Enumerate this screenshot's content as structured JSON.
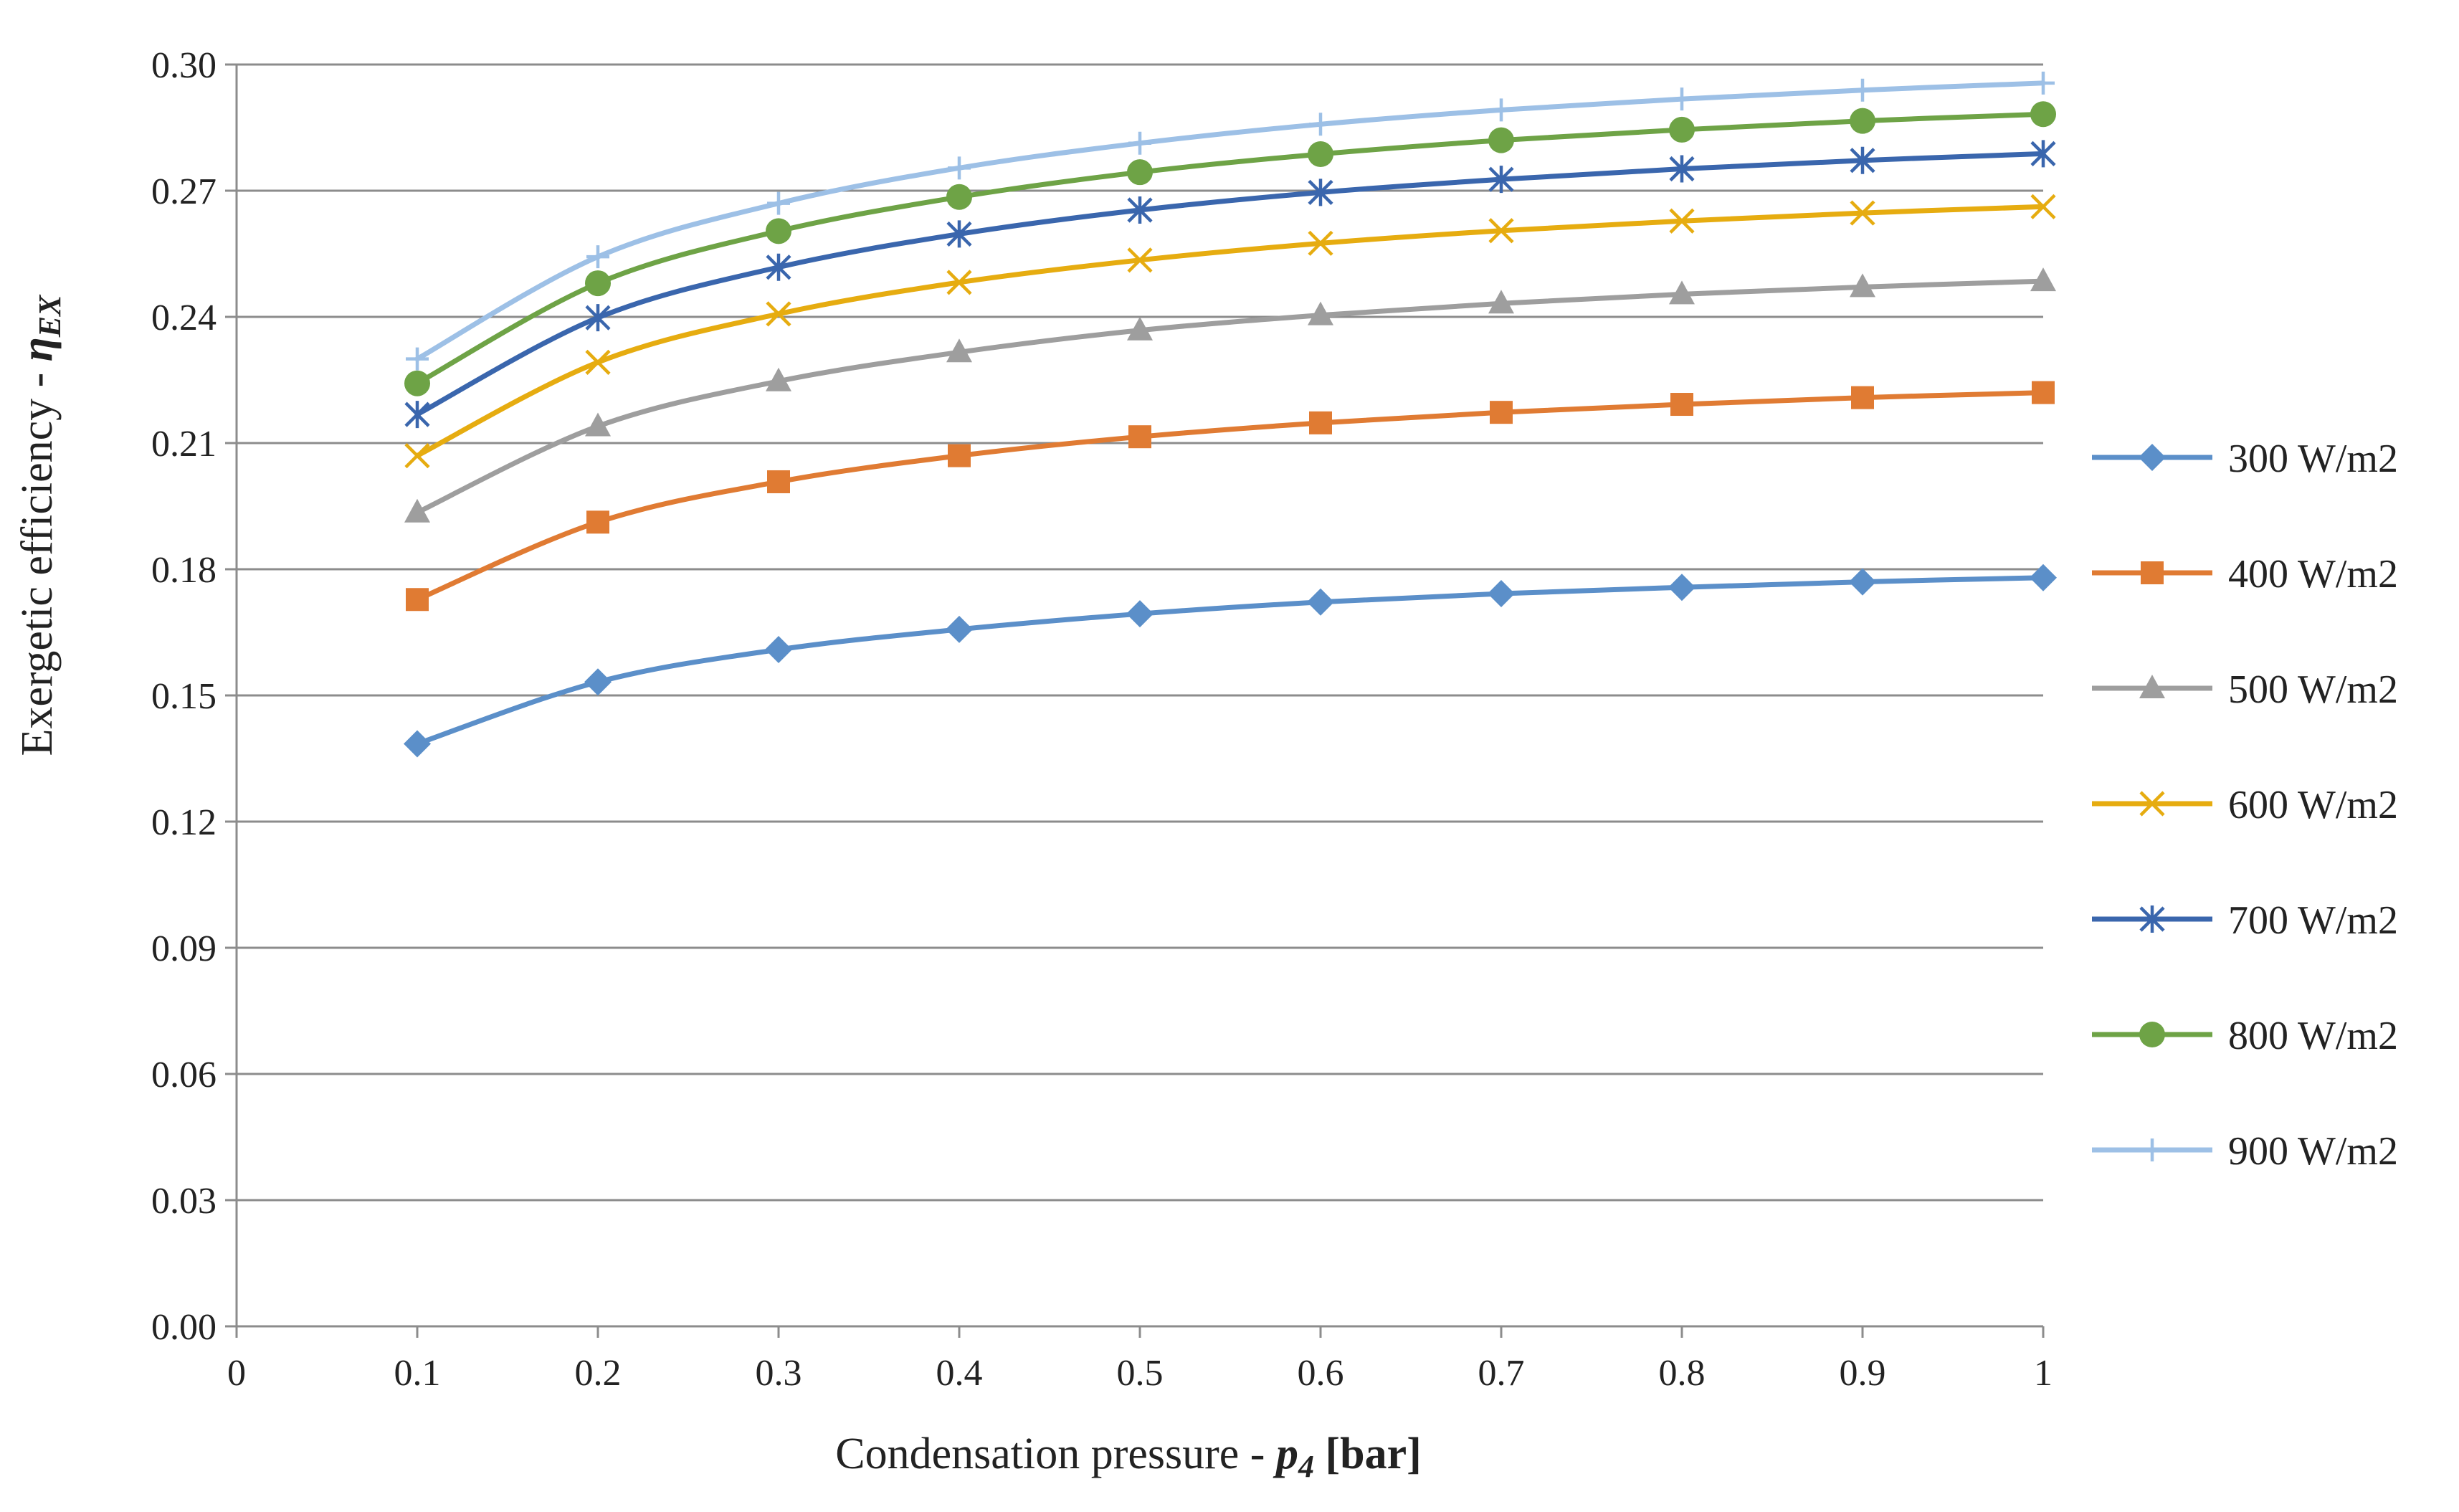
{
  "chart_data": {
    "type": "line",
    "title": "",
    "xlabel": {
      "prefix": "Condensation pressure - ",
      "symbol": "p",
      "subscript": "4",
      "unit": " [bar]"
    },
    "ylabel": {
      "prefix": "Exergetic efficiency - ",
      "symbol": "η",
      "subscript": "EX"
    },
    "xlim": [
      0,
      1
    ],
    "ylim": [
      0,
      0.3
    ],
    "xticks": [
      0,
      0.1,
      0.2,
      0.3,
      0.4,
      0.5,
      0.6,
      0.7,
      0.8,
      0.9,
      1
    ],
    "xtick_labels": [
      "0",
      "0.1",
      "0.2",
      "0.3",
      "0.4",
      "0.5",
      "0.6",
      "0.7",
      "0.8",
      "0.9",
      "1"
    ],
    "yticks": [
      0,
      0.03,
      0.06,
      0.09,
      0.12,
      0.15,
      0.18,
      0.21,
      0.24,
      0.27,
      0.3
    ],
    "ytick_labels": [
      "0.00",
      "0.03",
      "0.06",
      "0.09",
      "0.12",
      "0.15",
      "0.18",
      "0.21",
      "0.24",
      "0.27",
      "0.30"
    ],
    "grid": true,
    "legend_position": "right",
    "x": [
      0.1,
      0.2,
      0.3,
      0.4,
      0.5,
      0.6,
      0.7,
      0.8,
      0.9,
      1.0
    ],
    "series": [
      {
        "name": "300 W/m2",
        "color": "#5b8fc9",
        "marker": "diamond",
        "values": [
          0.1385,
          0.1532,
          0.1609,
          0.1657,
          0.1694,
          0.1722,
          0.1742,
          0.1757,
          0.177,
          0.178
        ]
      },
      {
        "name": "400 W/m2",
        "color": "#e07b33",
        "marker": "square",
        "values": [
          0.1728,
          0.1912,
          0.2008,
          0.207,
          0.2115,
          0.2148,
          0.2173,
          0.2192,
          0.2208,
          0.222
        ]
      },
      {
        "name": "500 W/m2",
        "color": "#9e9e9e",
        "marker": "triangle",
        "values": [
          0.1935,
          0.214,
          0.2247,
          0.2316,
          0.2368,
          0.2404,
          0.2432,
          0.2454,
          0.2471,
          0.2485
        ]
      },
      {
        "name": "600 W/m2",
        "color": "#e6ac10",
        "marker": "x",
        "values": [
          0.207,
          0.2292,
          0.2407,
          0.2482,
          0.2535,
          0.2575,
          0.2605,
          0.2628,
          0.2647,
          0.2662
        ]
      },
      {
        "name": "700 W/m2",
        "color": "#3a66ad",
        "marker": "asterisk",
        "values": [
          0.2168,
          0.2398,
          0.2518,
          0.2597,
          0.2654,
          0.2696,
          0.2727,
          0.2752,
          0.2772,
          0.2788
        ]
      },
      {
        "name": "800 W/m2",
        "color": "#6ea346",
        "marker": "circle",
        "values": [
          0.2242,
          0.248,
          0.2604,
          0.2685,
          0.2744,
          0.2787,
          0.282,
          0.2845,
          0.2866,
          0.2882
        ]
      },
      {
        "name": "900 W/m2",
        "color": "#9dc0e6",
        "marker": "plus",
        "values": [
          0.23,
          0.2543,
          0.267,
          0.2754,
          0.2813,
          0.2858,
          0.2892,
          0.2918,
          0.2939,
          0.2956
        ]
      }
    ]
  }
}
